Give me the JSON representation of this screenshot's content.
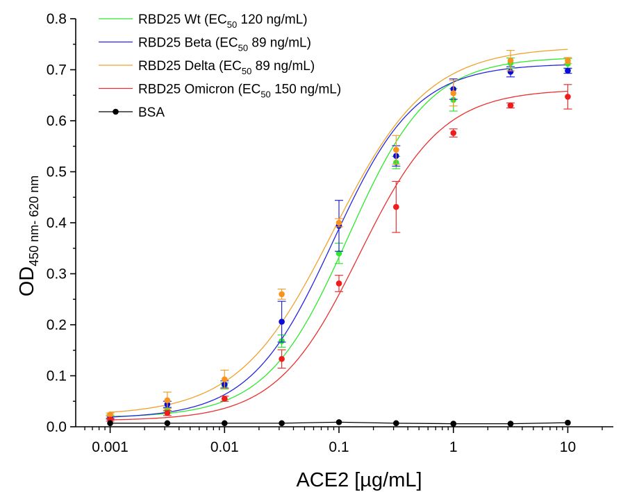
{
  "chart_data": {
    "type": "scatter",
    "title": "",
    "xlabel": "ACE2 [µg/mL]",
    "ylabel": {
      "main": "OD",
      "subscript": "450 nm- 620 nm"
    },
    "x_scale": "log",
    "xlim": [
      0.0005,
      25
    ],
    "ylim": [
      0,
      0.8
    ],
    "x_ticks": [
      0.001,
      0.01,
      0.1,
      1,
      10
    ],
    "x_tick_labels": [
      "0.001",
      "0.01",
      "0.1",
      "1",
      "10"
    ],
    "y_ticks": [
      0.0,
      0.1,
      0.2,
      0.3,
      0.4,
      0.5,
      0.6,
      0.7,
      0.8
    ],
    "y_tick_labels": [
      "0.0",
      "0.1",
      "0.2",
      "0.3",
      "0.4",
      "0.5",
      "0.6",
      "0.7",
      "0.8"
    ],
    "grid": false,
    "legend_position": "top-left",
    "x": [
      0.001,
      0.00316,
      0.01,
      0.0316,
      0.1,
      0.316,
      1,
      3.16,
      10
    ],
    "series": [
      {
        "name": "RBD25 Wt (EC50 120 ng/mL)",
        "legend": {
          "prefix": "RBD25 Wt (EC",
          "sub": "50",
          "suffix": " 120 ng/mL)"
        },
        "color": "#2ee82e",
        "marker": "#2ee82e",
        "values": [
          0.02,
          0.033,
          0.08,
          0.168,
          0.34,
          0.518,
          0.641,
          0.713,
          0.712
        ],
        "errors": [
          0.003,
          0.004,
          0.006,
          0.012,
          0.02,
          0.012,
          0.022,
          0.01,
          0.01
        ],
        "fit": {
          "bottom": 0.018,
          "top": 0.725,
          "ec50": 0.12,
          "hill": 1.22
        }
      },
      {
        "name": "RBD25 Beta (EC50 89 ng/mL)",
        "legend": {
          "prefix": "RBD25 Beta (EC",
          "sub": "50",
          "suffix": " 89 ng/mL)"
        },
        "color": "#2424e0",
        "marker": "#0b0bd6",
        "values": [
          0.018,
          0.044,
          0.083,
          0.206,
          0.394,
          0.531,
          0.662,
          0.696,
          0.698
        ],
        "errors": [
          0.003,
          0.006,
          0.007,
          0.04,
          0.05,
          0.02,
          0.02,
          0.01,
          0.005
        ],
        "fit": {
          "bottom": 0.016,
          "top": 0.712,
          "ec50": 0.089,
          "hill": 1.2
        }
      },
      {
        "name": "RBD25 Delta (EC50 89 ng/mL)",
        "legend": {
          "prefix": "RBD25 Delta (EC",
          "sub": "50",
          "suffix": " 89 ng/mL)"
        },
        "color": "#f0a12c",
        "marker": "#f7931e",
        "values": [
          0.024,
          0.052,
          0.093,
          0.26,
          0.4,
          0.543,
          0.654,
          0.718,
          0.718
        ],
        "errors": [
          0.003,
          0.016,
          0.018,
          0.01,
          0.008,
          0.028,
          0.025,
          0.02,
          0.006
        ],
        "fit": {
          "bottom": 0.022,
          "top": 0.745,
          "ec50": 0.089,
          "hill": 1.05
        }
      },
      {
        "name": "RBD25 Omicron (EC50 150 ng/mL)",
        "legend": {
          "prefix": "RBD25 Omicron (EC",
          "sub": "50",
          "suffix": " 150 ng/mL)"
        },
        "color": "#e8302e",
        "marker": "#ee1c1c",
        "values": [
          0.014,
          0.027,
          0.055,
          0.133,
          0.281,
          0.431,
          0.576,
          0.63,
          0.647
        ],
        "errors": [
          0.003,
          0.005,
          0.005,
          0.018,
          0.016,
          0.05,
          0.008,
          0.005,
          0.024
        ],
        "fit": {
          "bottom": 0.012,
          "top": 0.662,
          "ec50": 0.15,
          "hill": 1.2
        }
      },
      {
        "name": "BSA",
        "legend": {
          "prefix": "BSA",
          "sub": "",
          "suffix": ""
        },
        "color": "#000000",
        "marker": "#000000",
        "connect": true,
        "values": [
          0.007,
          0.007,
          0.007,
          0.007,
          0.009,
          0.007,
          0.006,
          0.006,
          0.008
        ],
        "errors": [
          0.001,
          0.001,
          0.001,
          0.001,
          0.001,
          0.001,
          0.001,
          0.001,
          0.001
        ]
      }
    ]
  }
}
